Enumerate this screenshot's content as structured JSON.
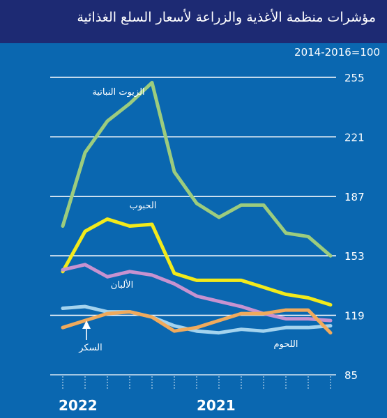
{
  "header": {
    "title": "مؤشرات منظمة الأغذية والزراعة لأسعار السلع الغذائية"
  },
  "chart_data": {
    "type": "line",
    "base_label": "2014-2016=100",
    "years": [
      "2022",
      "2021"
    ],
    "ylim": [
      85,
      255
    ],
    "yticks": [
      85,
      119,
      153,
      187,
      221,
      255
    ],
    "grid": true,
    "x_count": 16,
    "x_tick_labels": [
      "",
      "",
      "",
      "",
      "",
      "",
      "",
      "",
      "",
      "",
      "",
      "",
      "",
      "",
      "",
      ""
    ],
    "series": [
      {
        "name": "الزيوت النباتية",
        "color": "#9ccc7e",
        "values": [
          170,
          212,
          230,
          240,
          252,
          201,
          183,
          175,
          182,
          182,
          166,
          164,
          153
        ]
      },
      {
        "name": "الحبوب",
        "color": "#f2ea1b",
        "values": [
          144,
          167,
          174,
          170,
          171,
          143,
          139,
          139,
          139,
          135,
          131,
          129,
          125
        ]
      },
      {
        "name": "الألبان",
        "color": "#c792d0",
        "values": [
          145,
          148,
          141,
          144,
          142,
          137,
          130,
          127,
          124,
          120,
          117,
          117,
          116
        ]
      },
      {
        "name": "اللحوم",
        "color": "#a4d3ee",
        "values": [
          123,
          124,
          121,
          121,
          118,
          113,
          110,
          109,
          111,
          110,
          112,
          112,
          113
        ]
      },
      {
        "name": "السكر",
        "color": "#f0aa5c",
        "values": [
          112,
          116,
          120,
          121,
          118,
          110,
          112,
          116,
          120,
          120,
          122,
          122,
          109
        ]
      }
    ]
  }
}
